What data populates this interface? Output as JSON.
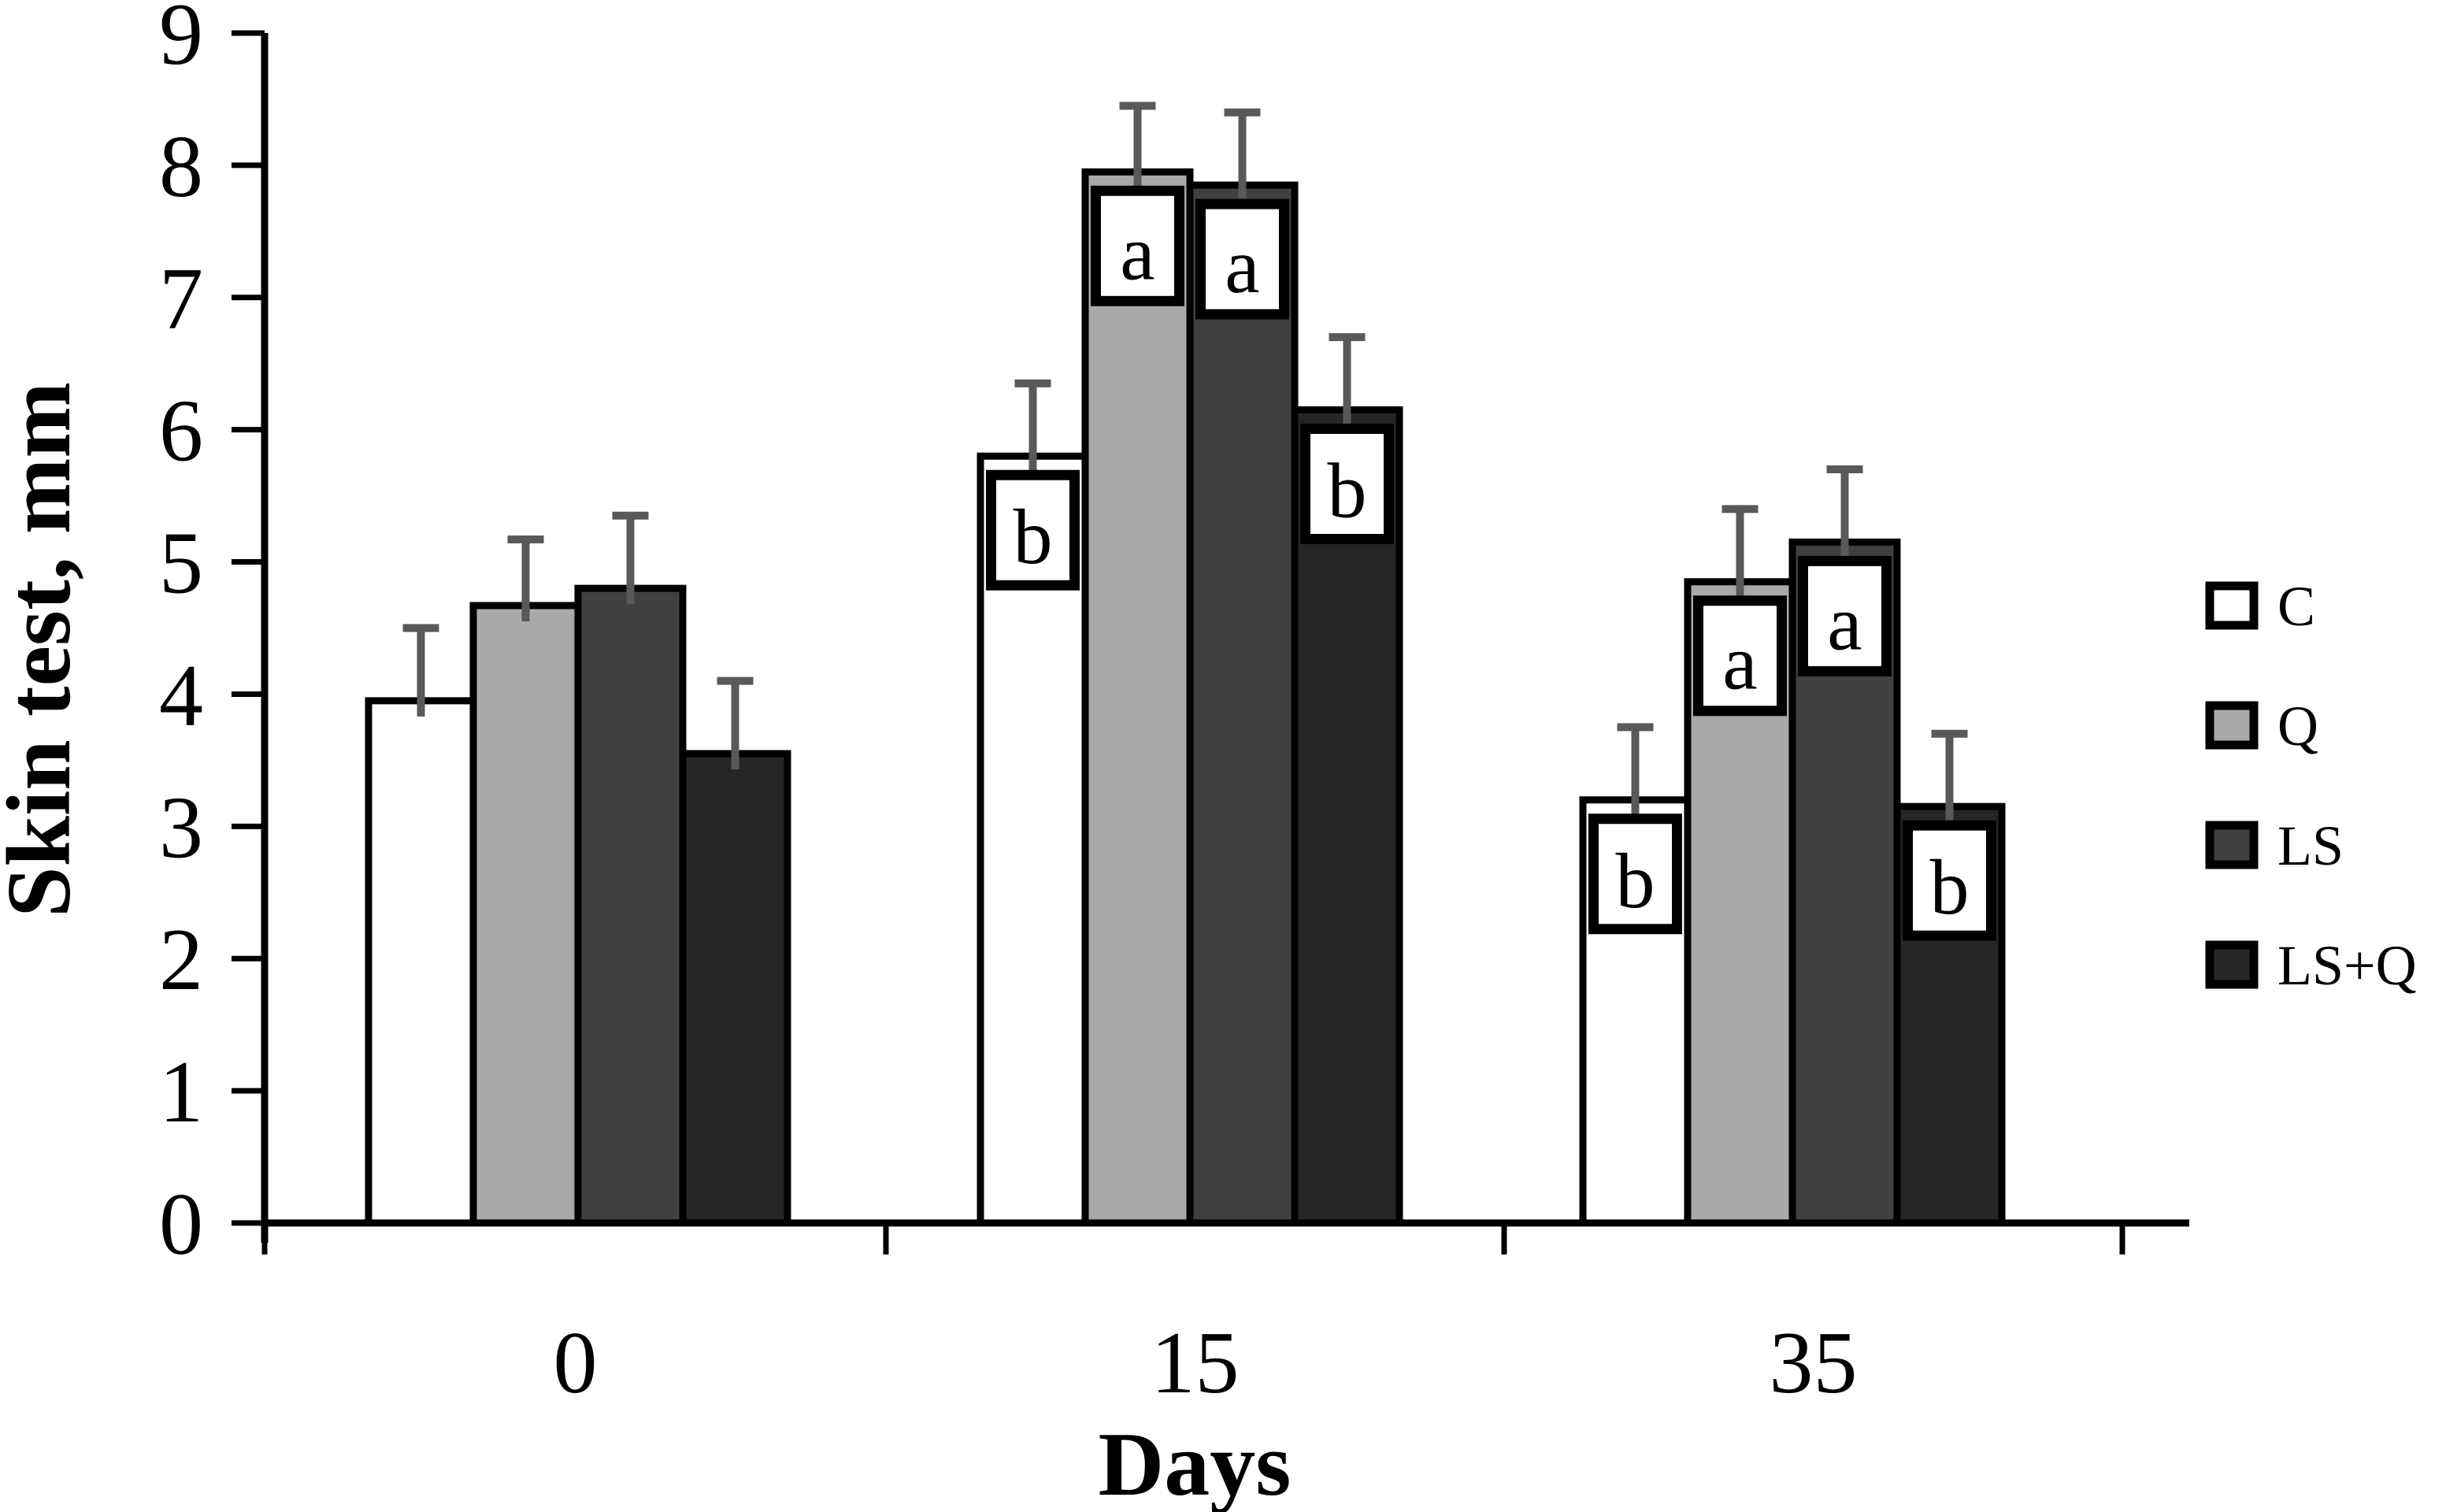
{
  "chart_data": {
    "type": "bar",
    "title": "",
    "xlabel": "Days",
    "ylabel": "Skin test, mm",
    "categories": [
      "0",
      "15",
      "35"
    ],
    "series": [
      {
        "name": "C",
        "fill": "#ffffff",
        "values": [
          3.95,
          5.8,
          3.2
        ],
        "errors": [
          0.55,
          0.55,
          0.55
        ],
        "letters": [
          "",
          "b",
          "b"
        ]
      },
      {
        "name": "Q",
        "fill": "#a9a9a9",
        "values": [
          4.67,
          7.95,
          4.85
        ],
        "errors": [
          0.5,
          0.5,
          0.55
        ],
        "letters": [
          "",
          "a",
          "a"
        ]
      },
      {
        "name": "LS",
        "fill": "#404040",
        "values": [
          4.8,
          7.85,
          5.15
        ],
        "errors": [
          0.55,
          0.55,
          0.55
        ],
        "letters": [
          "",
          "a",
          "a"
        ]
      },
      {
        "name": "LS+Q",
        "fill": "#262626",
        "values": [
          3.55,
          6.15,
          3.15
        ],
        "errors": [
          0.55,
          0.55,
          0.55
        ],
        "letters": [
          "",
          "b",
          "b"
        ]
      }
    ],
    "ylim": [
      0,
      9
    ],
    "ytick_step": 1,
    "ytick_labels": [
      "0",
      "1",
      "2",
      "3",
      "4",
      "5",
      "6",
      "7",
      "8",
      "9"
    ],
    "grid": false,
    "legend_position": "right",
    "bar_outline_color": "#000000",
    "error_bar_color": "#595959",
    "annotation_box": {
      "fill": "#ffffff",
      "border": "#000000"
    },
    "background_color": "#ffffff"
  }
}
